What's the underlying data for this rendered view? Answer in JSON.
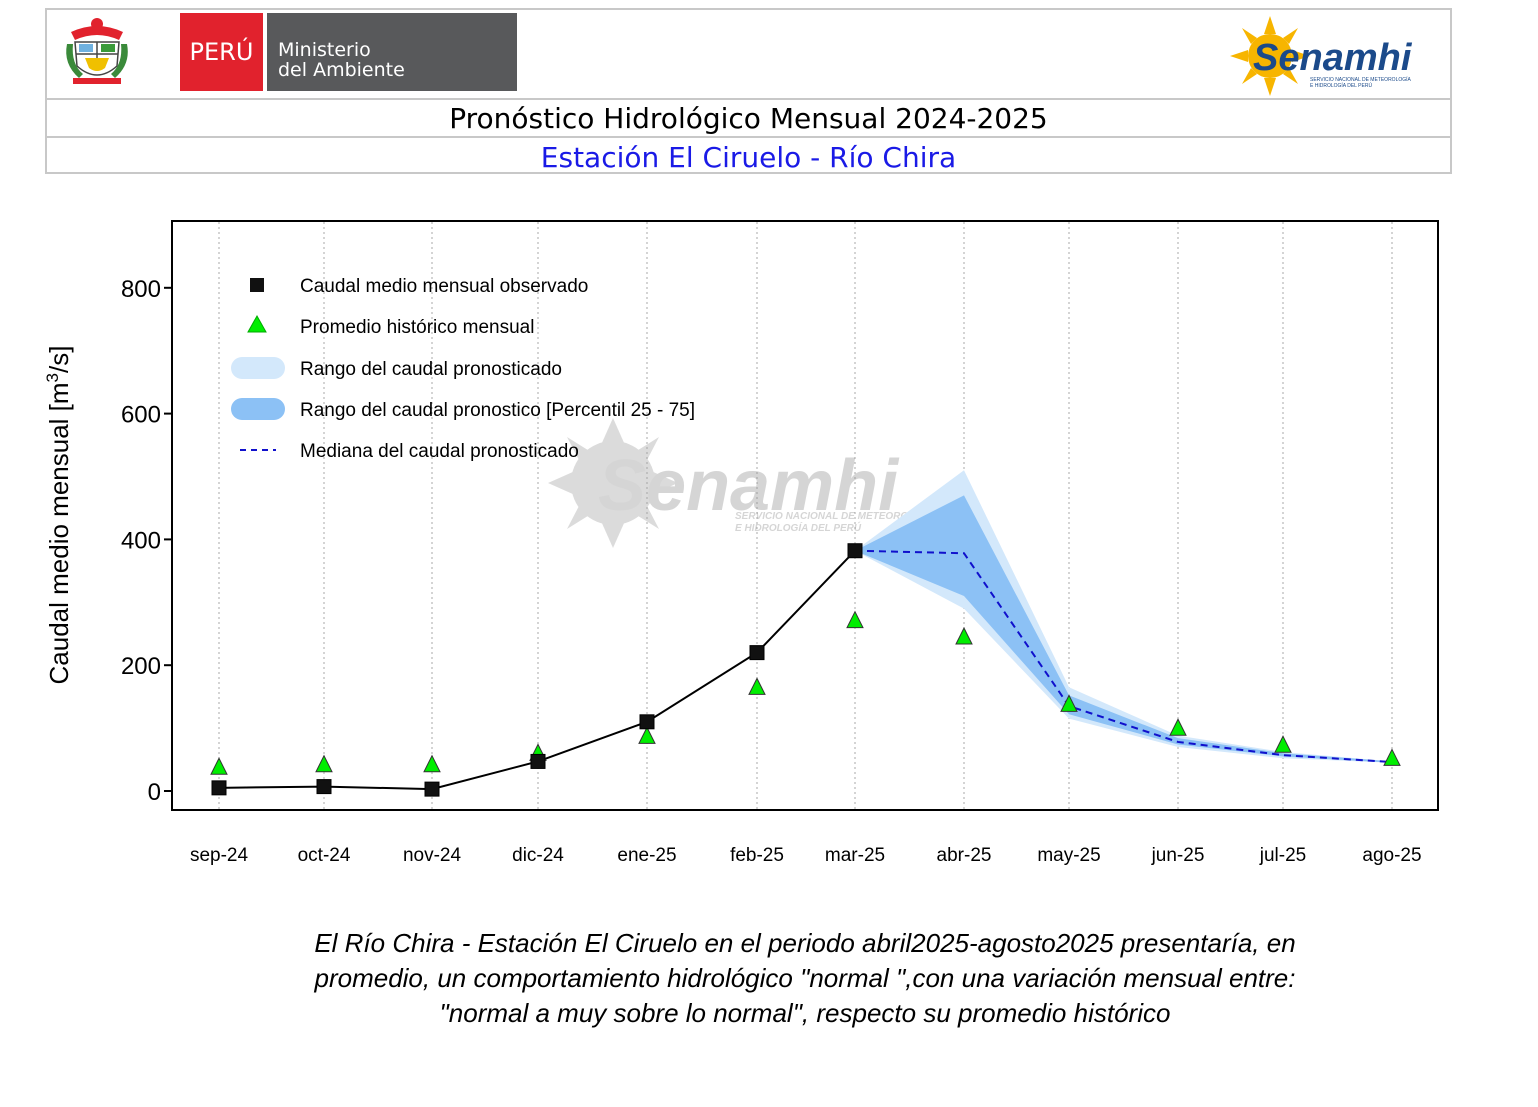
{
  "header": {
    "country": "PERÚ",
    "ministry_line1": "Ministerio",
    "ministry_line2": "del Ambiente",
    "logo_text": "Senamhi",
    "logo_subtext1": "SERVICIO NACIONAL DE METEOROLOGÍA",
    "logo_subtext2": "E HIDROLOGÍA DEL PERÚ",
    "title": "Pronóstico Hidrológico Mensual 2024-2025",
    "subtitle": "Estación El Ciruelo - Río Chira"
  },
  "watermark": {
    "text": "Senamhi",
    "subtext1": "SERVICIO NACIONAL DE METEOROLOGÍA",
    "subtext2": "E HIDROLOGÍA DEL PERÚ"
  },
  "chart_data": {
    "type": "line",
    "title": "",
    "xlabel": "",
    "ylabel": "Caudal medio mensual  [m3/s]",
    "ylim": [
      -30,
      900
    ],
    "yticks": [
      0,
      200,
      400,
      600,
      800
    ],
    "categories": [
      "sep-24",
      "oct-24",
      "nov-24",
      "dic-24",
      "ene-25",
      "feb-25",
      "mar-25",
      "abr-25",
      "may-25",
      "jun-25",
      "jul-25",
      "ago-25"
    ],
    "grid": "vertical dotted",
    "legend_position": "top-left",
    "series": [
      {
        "name": "Caudal medio mensual observado",
        "marker": "square",
        "color": "#000000",
        "values": [
          5,
          7,
          3,
          47,
          110,
          220,
          382,
          null,
          null,
          null,
          null,
          null
        ]
      },
      {
        "name": "Promedio histórico mensual",
        "marker": "triangle",
        "color": "#00ee00",
        "values": [
          33,
          37,
          37,
          55,
          82,
          160,
          266,
          240,
          133,
          95,
          68,
          47
        ]
      },
      {
        "name": "Rango del caudal pronosticado",
        "type": "band",
        "color": "#d3e8fb",
        "lower": [
          null,
          null,
          null,
          null,
          null,
          null,
          382,
          290,
          115,
          70,
          52,
          45
        ],
        "upper": [
          null,
          null,
          null,
          null,
          null,
          null,
          382,
          510,
          165,
          88,
          62,
          47
        ]
      },
      {
        "name": "Rango del caudal pronostico [Percentil 25 - 75]",
        "type": "band",
        "color": "#8cc1f5",
        "lower": [
          null,
          null,
          null,
          null,
          null,
          null,
          382,
          310,
          122,
          74,
          55,
          45
        ],
        "upper": [
          null,
          null,
          null,
          null,
          null,
          null,
          382,
          470,
          152,
          84,
          60,
          47
        ]
      },
      {
        "name": "Mediana del caudal pronosticado",
        "type": "dashed",
        "color": "#1010cc",
        "values": [
          null,
          null,
          null,
          null,
          null,
          null,
          382,
          378,
          135,
          78,
          57,
          46
        ]
      }
    ]
  },
  "caption": {
    "line1": "El Río Chira - Estación El Ciruelo en el periodo abril2025-agosto2025 presentaría, en",
    "line2": "promedio, un comportamiento hidrológico \"normal \",con una variación mensual entre:",
    "line3": "\"normal a muy sobre lo normal\", respecto su promedio histórico"
  },
  "colors": {
    "peru_red": "#e1222d",
    "ministry_gray": "#58595b",
    "subtitle_blue": "#1a1ae6",
    "senamhi_blue": "#1b4a8a",
    "senamhi_yellow": "#f7b500"
  }
}
